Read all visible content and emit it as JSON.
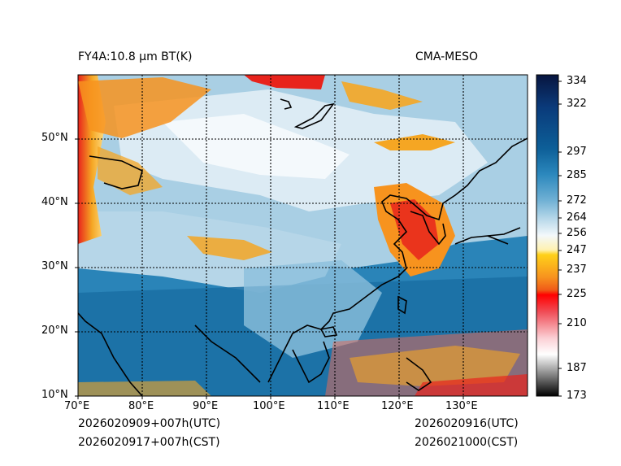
{
  "title_left": "FY4A:10.8 µm BT(K)",
  "title_right": "CMA-MESO",
  "footer": {
    "init_utc": "2026020909+007h(UTC)",
    "init_cst": "2026020917+007h(CST)",
    "valid_utc": "2026020916(UTC)",
    "valid_cst": "2026021000(CST)"
  },
  "lat_ticks": [
    "50°N",
    "40°N",
    "30°N",
    "20°N",
    "10°N"
  ],
  "lon_ticks": [
    "70°E",
    "80°E",
    "90°E",
    "100°E",
    "110°E",
    "120°E",
    "130°E"
  ],
  "colorbar_ticks": [
    "334",
    "322",
    "297",
    "285",
    "272",
    "264",
    "256",
    "247",
    "237",
    "225",
    "210",
    "187",
    "173"
  ],
  "colorbar_values": [
    334,
    322,
    297,
    285,
    272,
    264,
    256,
    247,
    237,
    225,
    210,
    187,
    173
  ],
  "colors": {
    "warm_sea": "#1f77ad",
    "mid_cloud": "#9fc9e0",
    "high_cloud": "#eef5fa",
    "orange_cloud": "#f5a623",
    "red_cloud": "#e8231c",
    "coast": "#000000"
  }
}
